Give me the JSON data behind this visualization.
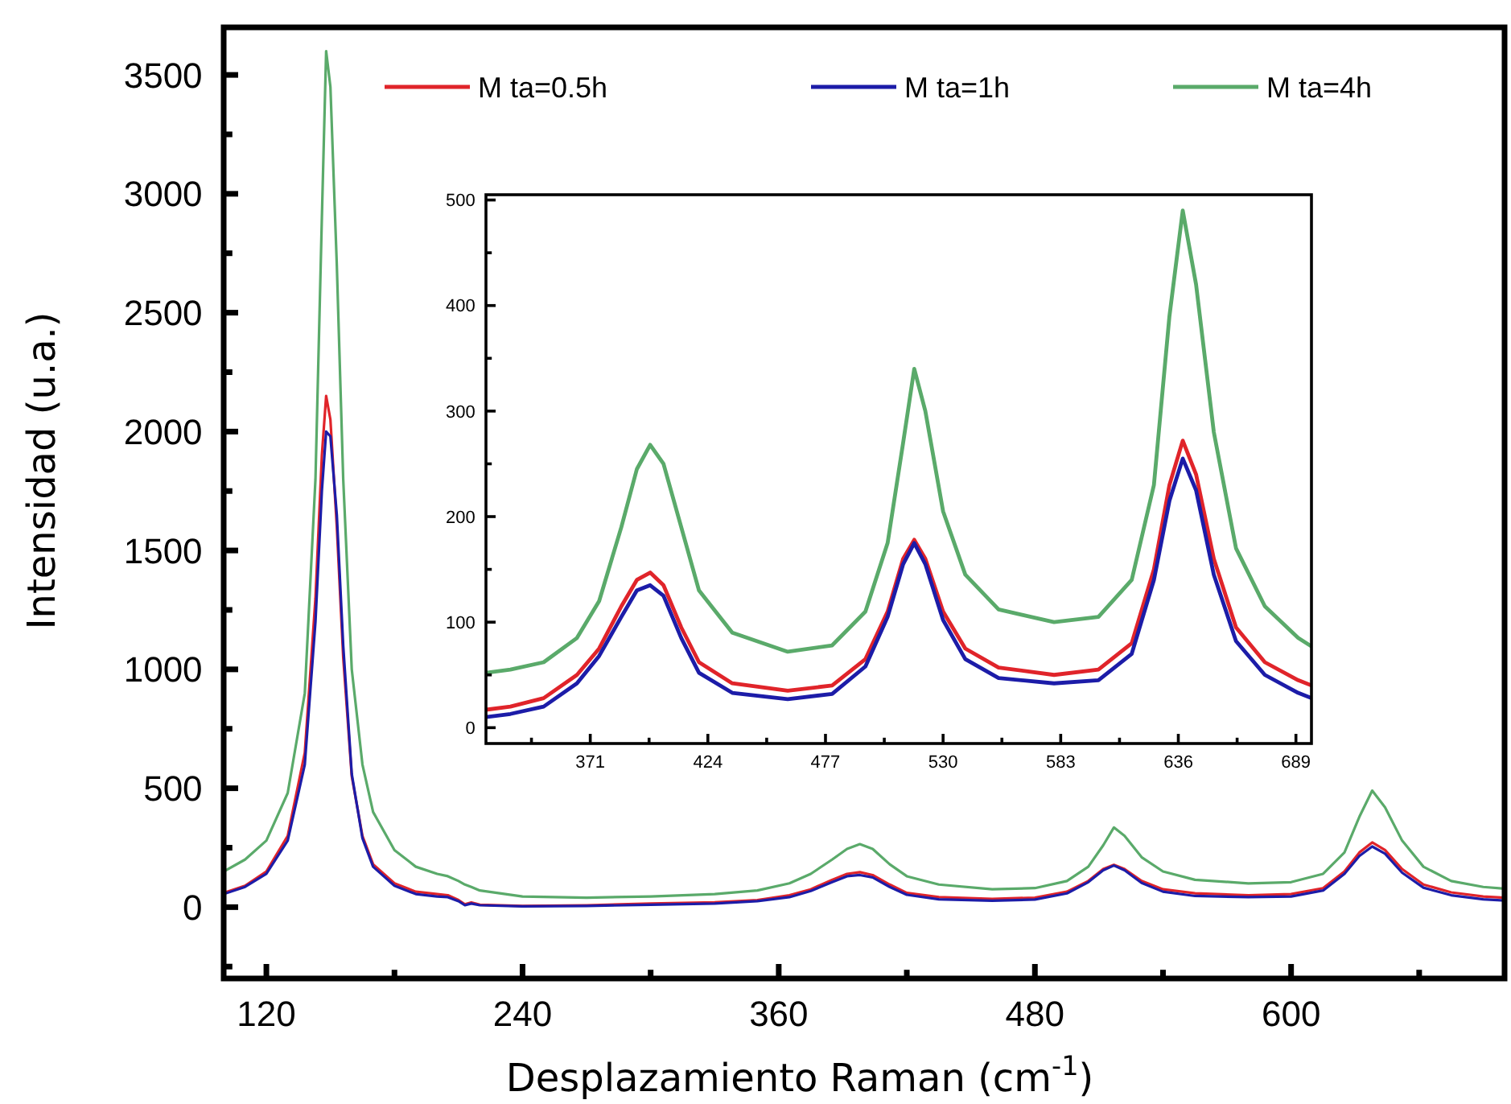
{
  "chart_data": [
    {
      "type": "line",
      "xlabel": "Desplazamiento Raman (cm$^{-1}$)",
      "ylabel": "Intensidad (u.a.)",
      "xlim": [
        100,
        700
      ],
      "ylim": [
        -300,
        3700
      ],
      "xticks": [
        120,
        {
          "value": 180,
          "label": null
        },
        240,
        {
          "value": 300,
          "label": null
        },
        360,
        {
          "value": 420,
          "label": null
        },
        480,
        {
          "value": 540,
          "label": null
        },
        600,
        {
          "value": 660,
          "label": null
        }
      ],
      "yticks": [
        {
          "value": -250,
          "label": null
        },
        0,
        {
          "value": 250,
          "label": null
        },
        500,
        {
          "value": 750,
          "label": null
        },
        1000,
        {
          "value": 1250,
          "label": null
        },
        1500,
        {
          "value": 1750,
          "label": null
        },
        2000,
        {
          "value": 2250,
          "label": null
        },
        2500,
        {
          "value": 2750,
          "label": null
        },
        3000,
        {
          "value": 3250,
          "label": null
        },
        3500
      ],
      "grid": false,
      "legend": "top",
      "marker": "none",
      "line_style": "solid",
      "x": [
        100,
        110,
        120,
        130,
        138,
        143,
        146,
        148,
        150,
        153,
        156,
        160,
        165,
        170,
        180,
        190,
        200,
        205,
        210,
        213,
        216,
        220,
        240,
        270,
        300,
        330,
        350,
        365,
        375,
        385,
        392,
        398,
        404,
        412,
        420,
        435,
        460,
        480,
        495,
        505,
        512,
        517,
        522,
        530,
        540,
        555,
        580,
        600,
        615,
        625,
        632,
        638,
        644,
        652,
        662,
        675,
        690,
        700
      ],
      "series": [
        {
          "name": "M ta=0.5h",
          "color": "#e0242a",
          "values": [
            60,
            90,
            150,
            300,
            650,
            1300,
            1900,
            2150,
            2050,
            1600,
            1050,
            550,
            300,
            180,
            100,
            65,
            55,
            50,
            30,
            12,
            20,
            10,
            5,
            8,
            15,
            20,
            30,
            50,
            75,
            115,
            140,
            147,
            135,
            95,
            60,
            42,
            35,
            40,
            65,
            110,
            160,
            178,
            160,
            110,
            75,
            58,
            50,
            55,
            80,
            150,
            230,
            272,
            240,
            160,
            95,
            62,
            45,
            40
          ]
        },
        {
          "name": "M ta=1h",
          "color": "#1c1ca8",
          "values": [
            55,
            85,
            140,
            280,
            600,
            1200,
            1750,
            2000,
            1980,
            1650,
            1100,
            560,
            290,
            170,
            90,
            55,
            45,
            42,
            25,
            8,
            15,
            8,
            3,
            5,
            10,
            15,
            25,
            42,
            68,
            105,
            130,
            135,
            125,
            85,
            52,
            33,
            27,
            32,
            58,
            105,
            155,
            175,
            155,
            102,
            65,
            47,
            42,
            45,
            70,
            140,
            215,
            255,
            225,
            145,
            82,
            50,
            33,
            28
          ]
        },
        {
          "name": "M ta=4h",
          "color": "#5aaa6a",
          "values": [
            150,
            200,
            280,
            480,
            900,
            1800,
            2900,
            3600,
            3450,
            2700,
            1800,
            1000,
            600,
            400,
            240,
            170,
            140,
            130,
            110,
            95,
            85,
            70,
            45,
            40,
            45,
            55,
            70,
            100,
            140,
            200,
            245,
            265,
            245,
            180,
            130,
            95,
            75,
            80,
            110,
            170,
            260,
            335,
            300,
            210,
            150,
            115,
            100,
            105,
            140,
            230,
            380,
            490,
            420,
            280,
            170,
            110,
            85,
            78
          ]
        }
      ]
    },
    {
      "type": "line",
      "xlim": [
        324,
        696
      ],
      "ylim": [
        -15,
        505
      ],
      "xticks": [
        {
          "value": 344.5,
          "label": null
        },
        371,
        {
          "value": 397.5,
          "label": null
        },
        424,
        {
          "value": 450.5,
          "label": null
        },
        477,
        {
          "value": 503.5,
          "label": null
        },
        530,
        {
          "value": 556.5,
          "label": null
        },
        583,
        {
          "value": 609.5,
          "label": null
        },
        636,
        {
          "value": 662.5,
          "label": null
        },
        689
      ],
      "yticks": [
        0,
        {
          "value": 50,
          "label": null
        },
        100,
        {
          "value": 150,
          "label": null
        },
        200,
        {
          "value": 250,
          "label": null
        },
        300,
        {
          "value": 350,
          "label": null
        },
        400,
        {
          "value": 450,
          "label": null
        },
        500
      ],
      "grid": false,
      "legend": false,
      "marker": "none",
      "line_style": "solid",
      "x": [
        324,
        335,
        350,
        365,
        375,
        385,
        392,
        398,
        404,
        412,
        420,
        435,
        460,
        480,
        495,
        505,
        512,
        517,
        522,
        530,
        540,
        555,
        580,
        600,
        615,
        625,
        632,
        638,
        644,
        652,
        662,
        675,
        690,
        696
      ],
      "series": [
        {
          "color": "#e0242a",
          "values": [
            17,
            20,
            28,
            50,
            75,
            115,
            140,
            147,
            135,
            95,
            62,
            42,
            35,
            40,
            65,
            110,
            160,
            178,
            160,
            110,
            75,
            57,
            50,
            55,
            80,
            150,
            230,
            272,
            240,
            160,
            95,
            62,
            45,
            40
          ]
        },
        {
          "color": "#1c1ca8",
          "values": [
            10,
            13,
            20,
            42,
            68,
            105,
            130,
            135,
            125,
            85,
            52,
            33,
            27,
            32,
            58,
            105,
            155,
            175,
            155,
            102,
            65,
            47,
            42,
            45,
            70,
            140,
            215,
            255,
            225,
            145,
            82,
            50,
            33,
            28
          ]
        },
        {
          "color": "#5aaa6a",
          "values": [
            52,
            55,
            62,
            85,
            120,
            190,
            245,
            268,
            250,
            190,
            130,
            90,
            72,
            78,
            110,
            175,
            270,
            340,
            300,
            205,
            145,
            112,
            100,
            105,
            140,
            230,
            390,
            490,
            420,
            280,
            170,
            115,
            85,
            77
          ]
        }
      ]
    }
  ]
}
